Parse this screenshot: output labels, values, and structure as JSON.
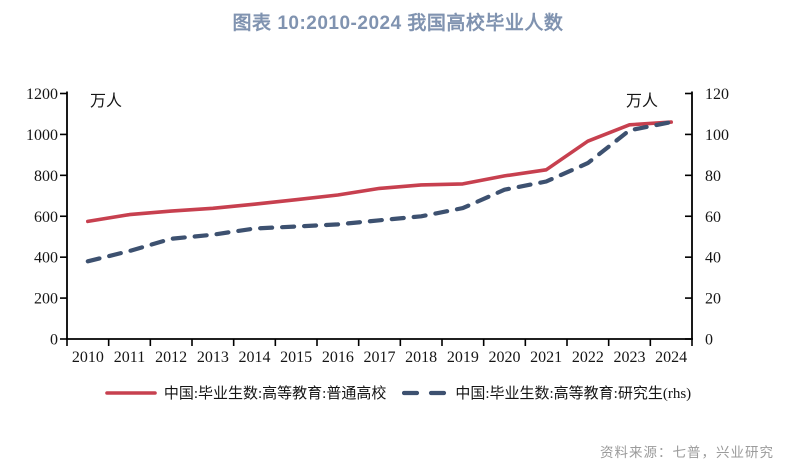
{
  "page": {
    "title": "图表 10:2010-2024 我国高校毕业人数",
    "source_note": "资料来源：七普，兴业研究"
  },
  "chart_data": {
    "type": "line",
    "title": "图表 10:2010-2024 我国高校毕业人数",
    "categories": [
      "2010",
      "2011",
      "2012",
      "2013",
      "2014",
      "2015",
      "2016",
      "2017",
      "2018",
      "2019",
      "2020",
      "2021",
      "2022",
      "2023",
      "2024"
    ],
    "series": [
      {
        "name": "中国:毕业生数:高等教育:普通高校",
        "axis": "left",
        "line_style": "solid",
        "color": "#C7404F",
        "values": [
          575,
          608,
          625,
          639,
          659,
          681,
          704,
          736,
          753,
          758,
          797,
          827,
          967,
          1047,
          1060
        ]
      },
      {
        "name": "中国:毕业生数:高等教育:研究生(rhs)",
        "axis": "right",
        "line_style": "dashed",
        "color": "#3D5170",
        "values": [
          38,
          43,
          49,
          51,
          54,
          55,
          56,
          58,
          60,
          64,
          73,
          77,
          86,
          102,
          106
        ]
      }
    ],
    "left_axis": {
      "label": "万人",
      "min": 0,
      "max": 1200,
      "ticks": [
        0,
        200,
        400,
        600,
        800,
        1000,
        1200
      ]
    },
    "right_axis": {
      "label": "万人",
      "min": 0,
      "max": 120,
      "ticks": [
        0,
        20,
        40,
        60,
        80,
        100,
        120
      ]
    },
    "grid": false,
    "legend_position": "bottom"
  },
  "colors": {
    "title_text": "#8093B0",
    "axis_text": "#151515",
    "axis_line": "#000000",
    "source_text": "#9B9B9B"
  }
}
